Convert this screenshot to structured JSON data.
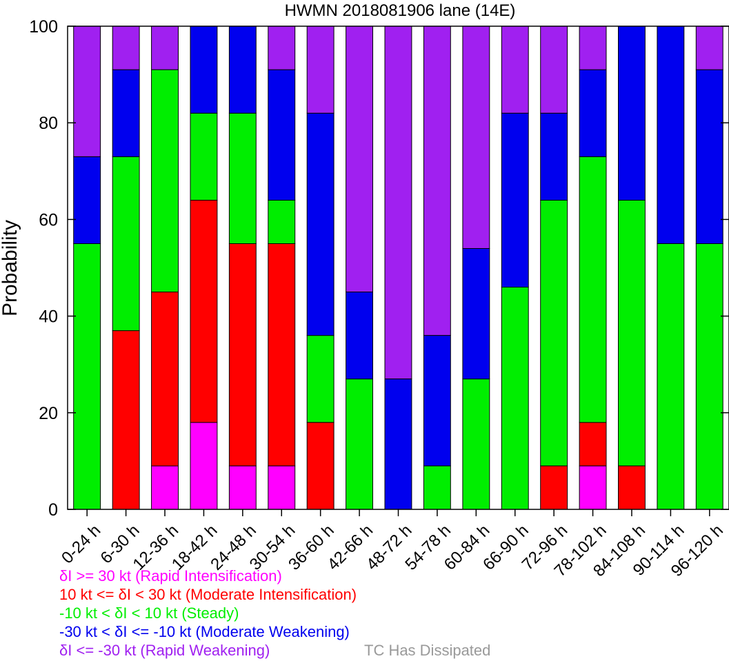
{
  "chart_data": {
    "type": "bar",
    "stacked": true,
    "title": "HWMN 2018081906 lane (14E)",
    "xlabel": "",
    "ylabel": "Probability",
    "ylim": [
      0,
      100
    ],
    "yticks": [
      0,
      20,
      40,
      60,
      80,
      100
    ],
    "grid": false,
    "categories": [
      "0-24 h",
      "6-30 h",
      "12-36 h",
      "18-42 h",
      "24-48 h",
      "30-54 h",
      "36-60 h",
      "42-66 h",
      "48-72 h",
      "54-78 h",
      "60-84 h",
      "66-90 h",
      "72-96 h",
      "78-102 h",
      "84-108 h",
      "90-114 h",
      "96-120 h"
    ],
    "series": [
      {
        "name": "δI >= 30 kt (Rapid Intensification)",
        "color": "#ff00ff",
        "values": [
          0,
          0,
          9,
          18,
          9,
          9,
          0,
          0,
          0,
          0,
          0,
          0,
          0,
          9,
          0,
          0,
          0
        ]
      },
      {
        "name": "10 kt <= δI < 30 kt (Moderate Intensification)",
        "color": "#ff0000",
        "values": [
          0,
          37,
          36,
          46,
          46,
          46,
          18,
          0,
          0,
          0,
          0,
          0,
          9,
          9,
          9,
          0,
          0
        ]
      },
      {
        "name": "-10 kt < δI < 10 kt (Steady)",
        "color": "#00ee00",
        "values": [
          55,
          36,
          46,
          18,
          27,
          9,
          18,
          27,
          0,
          9,
          27,
          46,
          55,
          55,
          55,
          55,
          55
        ]
      },
      {
        "name": "-30 kt < δI <= -10 kt (Moderate Weakening)",
        "color": "#0000ee",
        "values": [
          18,
          18,
          0,
          18,
          18,
          27,
          46,
          18,
          27,
          27,
          27,
          36,
          18,
          18,
          36,
          45,
          36
        ]
      },
      {
        "name": "δI <= -30 kt (Rapid Weakening)",
        "color": "#a020f0",
        "values": [
          27,
          9,
          9,
          0,
          0,
          9,
          18,
          55,
          73,
          64,
          46,
          18,
          18,
          9,
          0,
          0,
          9
        ]
      },
      {
        "name": "TC Has Dissipated",
        "color": "#999999",
        "values": [
          0,
          0,
          0,
          0,
          0,
          0,
          0,
          0,
          0,
          0,
          0,
          0,
          0,
          0,
          0,
          0,
          0
        ]
      }
    ]
  }
}
